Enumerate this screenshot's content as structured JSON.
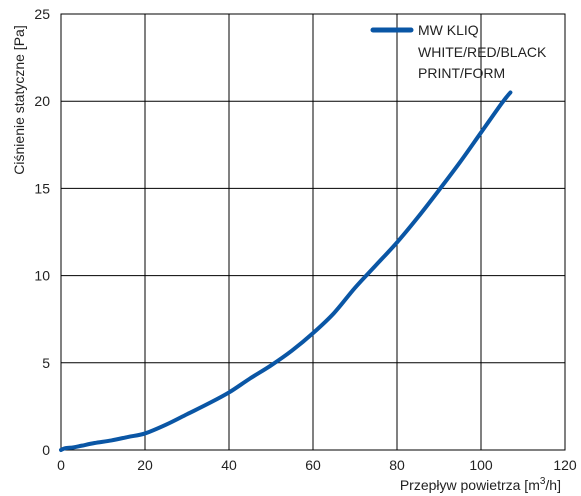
{
  "chart_data": {
    "type": "line",
    "xlabel_main": "Przepływ powietrza [m",
    "xlabel_sup": "3",
    "xlabel_tail": "/h]",
    "ylabel": "Ciśnienie statyczne [Pa]",
    "xlim": [
      0,
      120
    ],
    "ylim": [
      0,
      25
    ],
    "x_ticks": [
      "0",
      "20",
      "40",
      "60",
      "80",
      "100",
      "120"
    ],
    "y_ticks": [
      "0",
      "5",
      "10",
      "15",
      "20",
      "25"
    ],
    "x_tick_values": [
      0,
      20,
      40,
      60,
      80,
      100,
      120
    ],
    "y_tick_values": [
      0,
      5,
      10,
      15,
      20,
      25
    ],
    "grid": true,
    "legend": {
      "placement": "top-right",
      "lines": [
        "MW KLIQ",
        "WHITE/RED/BLACK",
        "PRINT/FORM"
      ]
    },
    "series": [
      {
        "name": "MW KLIQ WHITE/RED/BLACK PRINT/FORM",
        "color": "#0a56a5",
        "x": [
          0,
          1,
          3,
          5,
          8,
          12,
          16,
          20,
          25,
          30,
          35,
          40,
          45,
          50,
          55,
          60,
          65,
          70,
          75,
          80,
          85,
          90,
          95,
          100,
          105,
          107
        ],
        "y": [
          0,
          0.1,
          0.15,
          0.25,
          0.4,
          0.55,
          0.75,
          0.95,
          1.45,
          2.05,
          2.65,
          3.3,
          4.1,
          4.85,
          5.7,
          6.7,
          7.85,
          9.3,
          10.6,
          11.9,
          13.35,
          14.9,
          16.5,
          18.2,
          19.9,
          20.5
        ]
      }
    ]
  }
}
